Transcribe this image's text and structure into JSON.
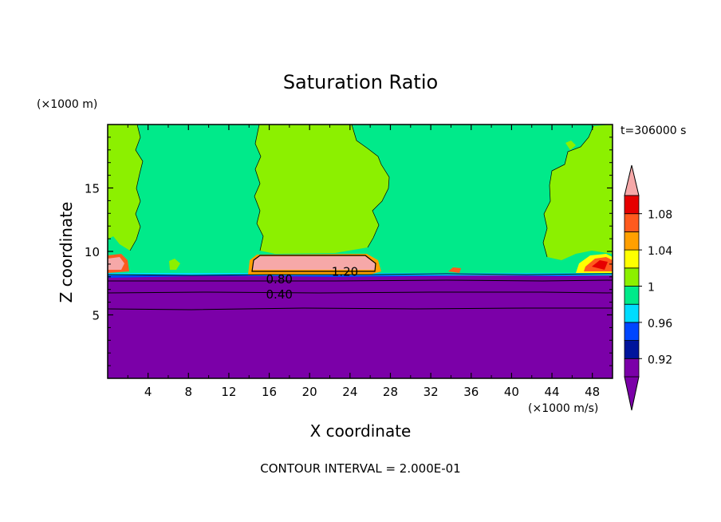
{
  "chart_data": {
    "type": "contour",
    "title": "Saturation Ratio",
    "xlabel": "X coordinate",
    "ylabel": "Z coordinate",
    "x_unit": "(×1000 m/s)",
    "y_unit": "(×1000 m)",
    "time_label": "t=306000 s",
    "footer": "CONTOUR INTERVAL = 2.000E-01",
    "xlim": [
      0,
      50
    ],
    "ylim": [
      0,
      20
    ],
    "x_ticks": [
      "4",
      "8",
      "12",
      "16",
      "20",
      "24",
      "28",
      "32",
      "36",
      "40",
      "44",
      "48"
    ],
    "y_ticks": [
      "5",
      "10",
      "15"
    ],
    "contour_labels": [
      {
        "text": "1.20",
        "x": 23.5,
        "y": 8.4
      },
      {
        "text": "0.80",
        "x": 17.0,
        "y": 7.8
      },
      {
        "text": "0.40",
        "x": 17.0,
        "y": 6.6
      }
    ],
    "colorbar": {
      "levels": [
        0.9,
        0.92,
        0.94,
        0.96,
        0.98,
        1.0,
        1.02,
        1.04,
        1.06,
        1.08,
        1.1
      ],
      "tick_labels": [
        "0.92",
        "0.96",
        "1",
        "1.04",
        "1.08"
      ],
      "colors": [
        "#7b00a8",
        "#00149c",
        "#0046ff",
        "#00dcff",
        "#00ea8a",
        "#8cf000",
        "#ffff00",
        "#ffa000",
        "#ff5a1e",
        "#e60000",
        "#f6a8a8"
      ],
      "under_color": "#7b00a8",
      "over_color": "#f6a8a8"
    }
  }
}
